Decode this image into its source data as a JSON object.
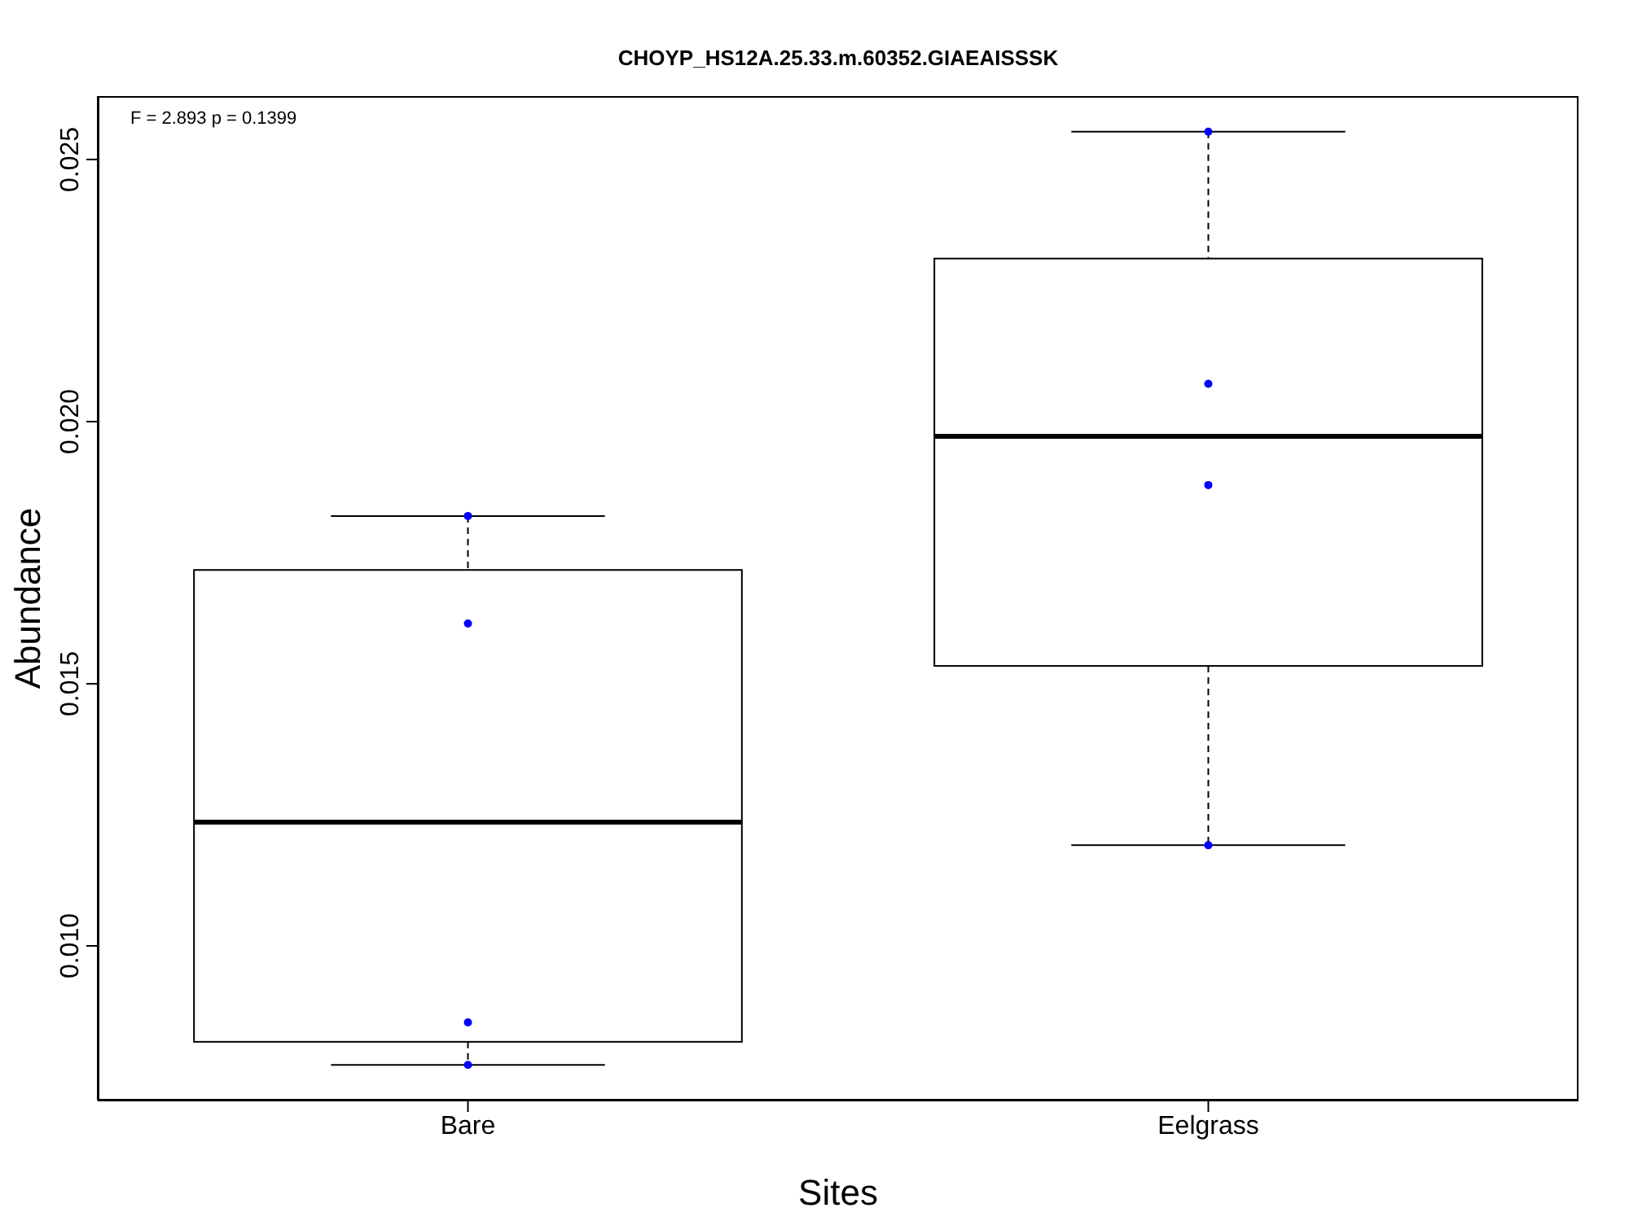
{
  "chart_data": {
    "type": "box",
    "title": "CHOYP_HS12A.25.33.m.60352.GIAEAISSSK",
    "xlabel": "Sites",
    "ylabel": "Abundance",
    "categories": [
      "Bare",
      "Eelgrass"
    ],
    "boxes": [
      {
        "low": 0.00773,
        "q1": 0.00817,
        "median": 0.01236,
        "q3": 0.01717,
        "high": 0.0182
      },
      {
        "low": 0.01192,
        "q1": 0.01534,
        "median": 0.01972,
        "q3": 0.02311,
        "high": 0.02553
      }
    ],
    "series": [
      {
        "type": "scatter",
        "color": "#0000ff",
        "x": [
          "Bare",
          "Bare",
          "Bare",
          "Bare"
        ],
        "values": [
          0.0182,
          0.01615,
          0.00854,
          0.00773
        ]
      },
      {
        "type": "scatter",
        "color": "#0000ff",
        "x": [
          "Eelgrass",
          "Eelgrass",
          "Eelgrass",
          "Eelgrass"
        ],
        "values": [
          0.02553,
          0.02072,
          0.01879,
          0.01192
        ]
      }
    ],
    "ylim": [
      0.00705,
      0.02621
    ],
    "yticks": [
      {
        "value": 0.01,
        "label": "0.010"
      },
      0.015,
      {
        "value": 0.02,
        "label": "0.020"
      },
      0.025
    ],
    "annotations": [
      "F = 2.893 p = 0.1399"
    ],
    "marker": "circle"
  }
}
